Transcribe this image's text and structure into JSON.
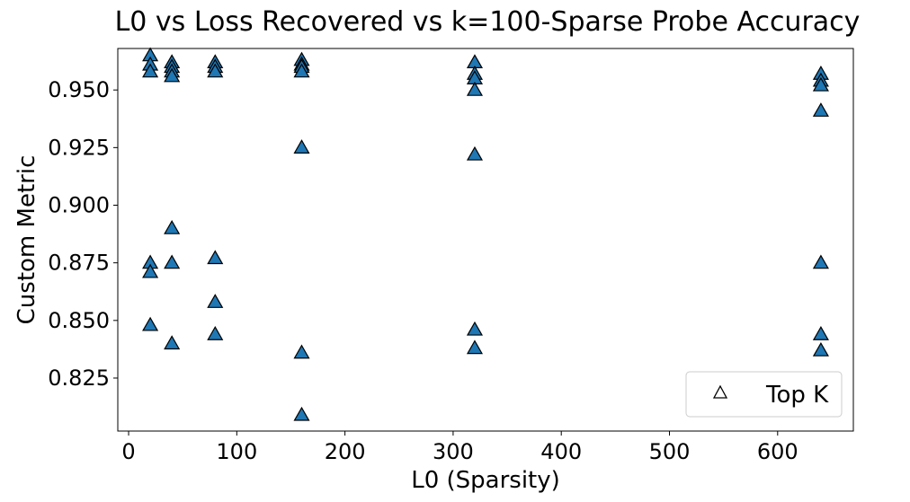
{
  "chart_data": {
    "type": "scatter",
    "title": "L0 vs Loss Recovered vs k=100-Sparse Probe Accuracy",
    "xlabel": "L0 (Sparsity)",
    "ylabel": "Custom Metric",
    "xlim": [
      -10,
      670
    ],
    "ylim": [
      0.802,
      0.968
    ],
    "xticks": [
      0,
      100,
      200,
      300,
      400,
      500,
      600
    ],
    "xtick_labels": [
      "0",
      "100",
      "200",
      "300",
      "400",
      "500",
      "600"
    ],
    "yticks": [
      0.825,
      0.85,
      0.875,
      0.9,
      0.925,
      0.95
    ],
    "ytick_labels": [
      "0.825",
      "0.850",
      "0.875",
      "0.900",
      "0.925",
      "0.950"
    ],
    "grid": false,
    "legend": {
      "position": "lower-right",
      "entries": [
        "Top K"
      ]
    },
    "series": [
      {
        "name": "Top K",
        "marker": "triangle",
        "color": "#1f77b4",
        "edgecolor": "#000000",
        "points": [
          [
            20,
            0.965
          ],
          [
            20,
            0.961
          ],
          [
            20,
            0.958
          ],
          [
            20,
            0.875
          ],
          [
            20,
            0.871
          ],
          [
            20,
            0.848
          ],
          [
            40,
            0.962
          ],
          [
            40,
            0.96
          ],
          [
            40,
            0.958
          ],
          [
            40,
            0.956
          ],
          [
            40,
            0.89
          ],
          [
            40,
            0.875
          ],
          [
            40,
            0.84
          ],
          [
            80,
            0.962
          ],
          [
            80,
            0.96
          ],
          [
            80,
            0.958
          ],
          [
            80,
            0.877
          ],
          [
            80,
            0.858
          ],
          [
            80,
            0.844
          ],
          [
            160,
            0.963
          ],
          [
            160,
            0.961
          ],
          [
            160,
            0.96
          ],
          [
            160,
            0.958
          ],
          [
            160,
            0.925
          ],
          [
            160,
            0.836
          ],
          [
            160,
            0.809
          ],
          [
            320,
            0.962
          ],
          [
            320,
            0.957
          ],
          [
            320,
            0.955
          ],
          [
            320,
            0.95
          ],
          [
            320,
            0.922
          ],
          [
            320,
            0.846
          ],
          [
            320,
            0.838
          ],
          [
            640,
            0.957
          ],
          [
            640,
            0.954
          ],
          [
            640,
            0.952
          ],
          [
            640,
            0.941
          ],
          [
            640,
            0.875
          ],
          [
            640,
            0.844
          ],
          [
            640,
            0.837
          ]
        ]
      }
    ]
  }
}
